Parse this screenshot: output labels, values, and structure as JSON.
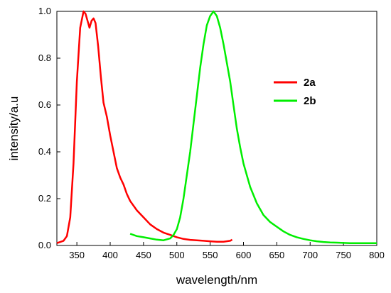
{
  "chart_data": {
    "type": "line",
    "title": "",
    "xlabel": "wavelength/nm",
    "ylabel": "intensity/a.u",
    "xlim": [
      320,
      800
    ],
    "ylim": [
      0.0,
      1.0
    ],
    "xticks": [
      350,
      400,
      450,
      500,
      550,
      600,
      650,
      700,
      750,
      800
    ],
    "xtick_labels": [
      "350",
      "400",
      "450",
      "500",
      "550",
      "600",
      "650",
      "700",
      "750",
      "800"
    ],
    "yticks": [
      0.0,
      0.2,
      0.4,
      0.6,
      0.8,
      1.0
    ],
    "ytick_labels": [
      "0.0",
      "0.2",
      "0.4",
      "0.6",
      "0.8",
      "1.0"
    ],
    "grid": false,
    "legend_position": "right",
    "series": [
      {
        "name": "2a",
        "color": "#ff0000",
        "points": [
          [
            320,
            0.01
          ],
          [
            330,
            0.02
          ],
          [
            335,
            0.04
          ],
          [
            340,
            0.12
          ],
          [
            345,
            0.35
          ],
          [
            350,
            0.7
          ],
          [
            355,
            0.93
          ],
          [
            360,
            1.0
          ],
          [
            363,
            0.99
          ],
          [
            366,
            0.96
          ],
          [
            369,
            0.93
          ],
          [
            372,
            0.96
          ],
          [
            375,
            0.97
          ],
          [
            378,
            0.95
          ],
          [
            382,
            0.85
          ],
          [
            386,
            0.72
          ],
          [
            390,
            0.61
          ],
          [
            395,
            0.55
          ],
          [
            400,
            0.47
          ],
          [
            405,
            0.4
          ],
          [
            410,
            0.33
          ],
          [
            415,
            0.29
          ],
          [
            420,
            0.26
          ],
          [
            425,
            0.22
          ],
          [
            430,
            0.19
          ],
          [
            440,
            0.15
          ],
          [
            450,
            0.12
          ],
          [
            460,
            0.09
          ],
          [
            470,
            0.07
          ],
          [
            480,
            0.055
          ],
          [
            490,
            0.045
          ],
          [
            500,
            0.035
          ],
          [
            510,
            0.028
          ],
          [
            520,
            0.024
          ],
          [
            530,
            0.022
          ],
          [
            540,
            0.02
          ],
          [
            550,
            0.018
          ],
          [
            560,
            0.016
          ],
          [
            570,
            0.016
          ],
          [
            580,
            0.02
          ],
          [
            583,
            0.025
          ]
        ]
      },
      {
        "name": "2b",
        "color": "#00ee00",
        "points": [
          [
            430,
            0.05
          ],
          [
            440,
            0.04
          ],
          [
            450,
            0.035
          ],
          [
            460,
            0.03
          ],
          [
            470,
            0.025
          ],
          [
            480,
            0.022
          ],
          [
            490,
            0.03
          ],
          [
            495,
            0.045
          ],
          [
            500,
            0.07
          ],
          [
            505,
            0.12
          ],
          [
            510,
            0.2
          ],
          [
            515,
            0.3
          ],
          [
            520,
            0.4
          ],
          [
            525,
            0.52
          ],
          [
            530,
            0.64
          ],
          [
            535,
            0.76
          ],
          [
            540,
            0.86
          ],
          [
            545,
            0.94
          ],
          [
            550,
            0.98
          ],
          [
            555,
            1.0
          ],
          [
            560,
            0.98
          ],
          [
            565,
            0.93
          ],
          [
            570,
            0.86
          ],
          [
            575,
            0.78
          ],
          [
            580,
            0.7
          ],
          [
            585,
            0.6
          ],
          [
            590,
            0.5
          ],
          [
            595,
            0.42
          ],
          [
            600,
            0.35
          ],
          [
            610,
            0.25
          ],
          [
            620,
            0.18
          ],
          [
            630,
            0.13
          ],
          [
            640,
            0.1
          ],
          [
            650,
            0.08
          ],
          [
            660,
            0.06
          ],
          [
            670,
            0.045
          ],
          [
            680,
            0.035
          ],
          [
            690,
            0.028
          ],
          [
            700,
            0.022
          ],
          [
            710,
            0.018
          ],
          [
            720,
            0.015
          ],
          [
            730,
            0.013
          ],
          [
            740,
            0.012
          ],
          [
            750,
            0.011
          ],
          [
            760,
            0.01
          ],
          [
            770,
            0.01
          ],
          [
            780,
            0.01
          ],
          [
            790,
            0.01
          ],
          [
            800,
            0.01
          ]
        ]
      }
    ]
  }
}
